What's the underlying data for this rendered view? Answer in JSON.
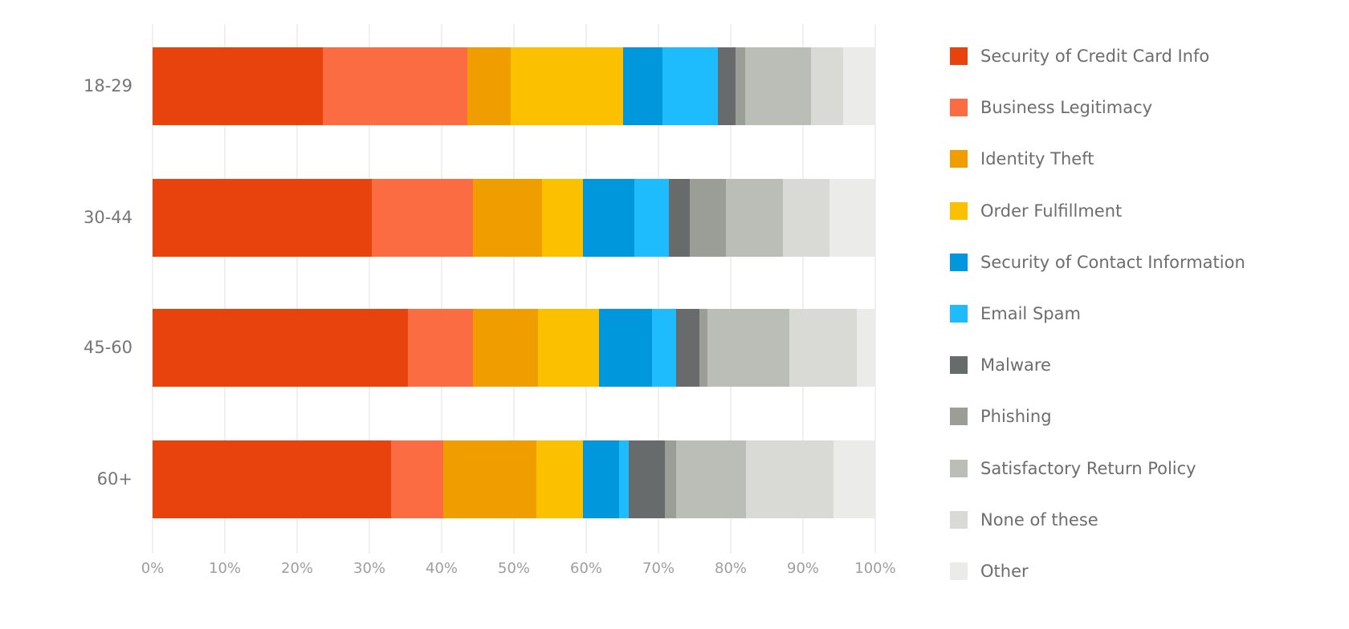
{
  "chart_data": {
    "type": "bar",
    "orientation": "horizontal",
    "stacked": true,
    "stacked_total": 100,
    "title": "",
    "xlabel": "",
    "ylabel": "",
    "categories": [
      "18-29",
      "30-44",
      "45-60",
      "60+"
    ],
    "series": [
      {
        "name": "Security of Credit Card Info",
        "color": "#e8420d",
        "values": [
          23.5,
          30.3,
          35.3,
          33.0
        ]
      },
      {
        "name": "Business Legitimacy",
        "color": "#fb6c42",
        "values": [
          20.0,
          14.0,
          9.0,
          7.2
        ]
      },
      {
        "name": "Identity Theft",
        "color": "#f09d00",
        "values": [
          6.0,
          9.6,
          9.0,
          12.9
        ]
      },
      {
        "name": "Order Fulfillment",
        "color": "#fbc100",
        "values": [
          15.6,
          5.7,
          8.5,
          6.5
        ]
      },
      {
        "name": "Security of Contact Information",
        "color": "#0097dc",
        "values": [
          5.5,
          7.1,
          7.3,
          5.0
        ]
      },
      {
        "name": "Email Spam",
        "color": "#1ebcfd",
        "values": [
          7.6,
          4.7,
          3.4,
          1.3
        ]
      },
      {
        "name": "Malware",
        "color": "#676b6b",
        "values": [
          2.5,
          2.9,
          3.2,
          5.0
        ]
      },
      {
        "name": "Phishing",
        "color": "#9a9e96",
        "values": [
          1.3,
          5.0,
          1.1,
          1.6
        ]
      },
      {
        "name": "Satisfactory Return Policy",
        "color": "#bbbdb7",
        "values": [
          9.1,
          7.9,
          11.3,
          9.6
        ]
      },
      {
        "name": "None of these",
        "color": "#d9dad6",
        "values": [
          4.5,
          6.5,
          9.4,
          12.1
        ]
      },
      {
        "name": "Other",
        "color": "#ebece9",
        "values": [
          4.4,
          6.3,
          2.5,
          5.8
        ]
      }
    ],
    "x_axis": {
      "min": 0,
      "max": 100,
      "tick_labels": [
        "0%",
        "10%",
        "20%",
        "30%",
        "40%",
        "50%",
        "60%",
        "70%",
        "80%",
        "90%",
        "100%"
      ],
      "grid": true
    },
    "legend_position": "right"
  },
  "styles": {
    "background": "#ffffff",
    "grid_color": "#f0f0f0",
    "axis_label_color": "#9e9e9e",
    "category_label_color": "#757575",
    "legend_text_color": "#6d6d6d"
  }
}
